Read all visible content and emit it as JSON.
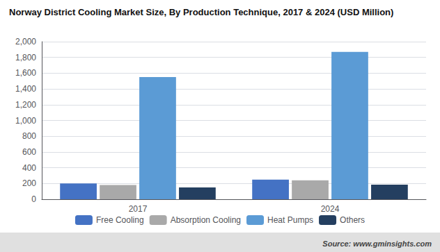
{
  "chart_data": {
    "type": "bar",
    "title": "Norway District Cooling Market Size, By Production Technique, 2017 & 2024 (USD Million)",
    "annotations": [
      "Source: www.gminsights.com"
    ],
    "categories": [
      "2017",
      "2024"
    ],
    "series": [
      {
        "name": "Free Cooling",
        "color": "#4472C4",
        "values": [
          200,
          250
        ]
      },
      {
        "name": "Absorption Cooling",
        "color": "#A9A9A9",
        "values": [
          180,
          240
        ]
      },
      {
        "name": "Heat Pumps",
        "color": "#5B9BD5",
        "values": [
          1550,
          1870
        ]
      },
      {
        "name": "Others",
        "color": "#243F60",
        "values": [
          150,
          185
        ]
      }
    ],
    "ylim": [
      0,
      2000
    ],
    "yticks": [
      0,
      200,
      400,
      600,
      800,
      {
        "value": 1000,
        "label": "1,000"
      },
      {
        "value": 1200,
        "label": "1,200"
      },
      {
        "value": 1400,
        "label": "1,400"
      },
      {
        "value": 1600,
        "label": "1,600"
      },
      {
        "value": 1800,
        "label": "1,800"
      },
      {
        "value": 2000,
        "label": "2,000"
      }
    ],
    "grid": true,
    "legend": "bottom"
  }
}
